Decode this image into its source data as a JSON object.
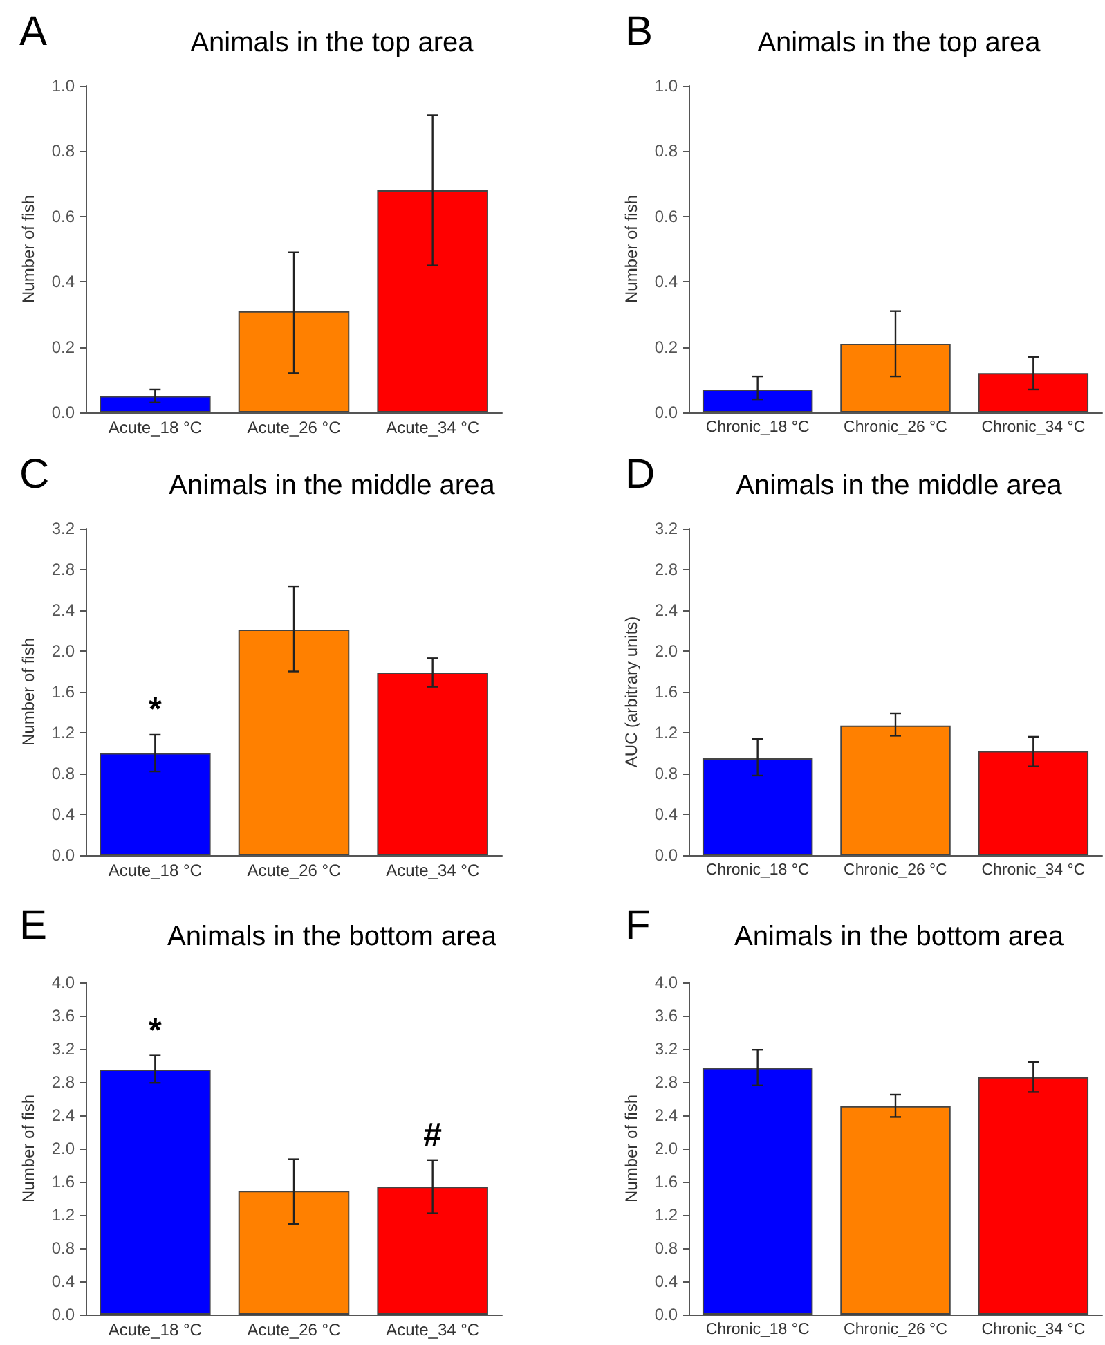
{
  "chart_data": [
    {
      "type": "bar",
      "title": "Animals in the top area",
      "ylabel": "Number of fish",
      "categories": [
        "Acute_18 °C",
        "Acute_26 °C",
        "Acute_34 °C"
      ],
      "values": [
        0.05,
        0.31,
        0.68
      ],
      "colors": [
        "#0000ff",
        "#ff8000",
        "#ff0000"
      ],
      "errors": [
        [
          0.03,
          0.07
        ],
        [
          0.12,
          0.49
        ],
        [
          0.45,
          0.91
        ]
      ],
      "ylim": [
        0,
        1.0
      ],
      "yticks": [
        {
          "value": 0,
          "label": "0.0"
        },
        0.2,
        0.4,
        0.6,
        0.8,
        {
          "value": 1,
          "label": "1.0"
        }
      ],
      "grid": false,
      "annotations": [
        "A"
      ]
    },
    {
      "type": "bar",
      "title": "Animals in the top area",
      "ylabel": "Number of fish",
      "categories": [
        "Chronic_18 °C",
        "Chronic_26 °C",
        "Chronic_34 °C"
      ],
      "values": [
        0.07,
        0.21,
        0.12
      ],
      "colors": [
        "#0000ff",
        "#ff8000",
        "#ff0000"
      ],
      "errors": [
        [
          0.04,
          0.11
        ],
        [
          0.11,
          0.31
        ],
        [
          0.07,
          0.17
        ]
      ],
      "ylim": [
        0,
        1.0
      ],
      "yticks": [
        {
          "value": 0,
          "label": "0.0"
        },
        0.2,
        0.4,
        0.6,
        0.8,
        {
          "value": 1,
          "label": "1.0"
        }
      ],
      "grid": false,
      "annotations": [
        "B"
      ]
    },
    {
      "type": "bar",
      "title": "Animals in the middle area",
      "ylabel": "Number of fish",
      "categories": [
        "Acute_18 °C",
        "Acute_26 °C",
        "Acute_34 °C"
      ],
      "values": [
        1.0,
        2.21,
        1.79
      ],
      "colors": [
        "#0000ff",
        "#ff8000",
        "#ff0000"
      ],
      "errors": [
        [
          0.82,
          1.18
        ],
        [
          1.8,
          2.63
        ],
        [
          1.65,
          1.93
        ]
      ],
      "ylim": [
        0,
        3.2
      ],
      "yticks": [
        {
          "value": 0,
          "label": "0.0"
        },
        0.4,
        0.8,
        1.2,
        1.6,
        {
          "value": 2,
          "label": "2.0"
        },
        2.4,
        2.8,
        3.2
      ],
      "grid": false,
      "annotations": [
        "C",
        {
          "text": "*",
          "x": "Acute_18 °C",
          "y": 1.0
        }
      ]
    },
    {
      "type": "bar",
      "title": "Animals in the middle area",
      "ylabel": "AUC (arbitrary units)",
      "categories": [
        "Chronic_18 °C",
        "Chronic_26 °C",
        "Chronic_34 °C"
      ],
      "values": [
        0.95,
        1.27,
        1.02
      ],
      "colors": [
        "#0000ff",
        "#ff8000",
        "#ff0000"
      ],
      "errors": [
        [
          0.78,
          1.14
        ],
        [
          1.17,
          1.39
        ],
        [
          0.87,
          1.16
        ]
      ],
      "ylim": [
        0,
        3.2
      ],
      "yticks": [
        {
          "value": 0,
          "label": "0.0"
        },
        0.4,
        0.8,
        1.2,
        1.6,
        {
          "value": 2,
          "label": "2.0"
        },
        2.4,
        2.8,
        3.2
      ],
      "grid": false,
      "annotations": [
        "D"
      ]
    },
    {
      "type": "bar",
      "title": "Animals in the bottom area",
      "ylabel": "Number of fish",
      "categories": [
        "Acute_18 °C",
        "Acute_26 °C",
        "Acute_34 °C"
      ],
      "values": [
        2.95,
        1.49,
        1.54
      ],
      "colors": [
        "#0000ff",
        "#ff8000",
        "#ff0000"
      ],
      "errors": [
        [
          2.79,
          3.12
        ],
        [
          1.09,
          1.87
        ],
        [
          1.22,
          1.86
        ]
      ],
      "ylim": [
        0,
        4.0
      ],
      "yticks": [
        {
          "value": 0,
          "label": "0.0"
        },
        0.4,
        0.8,
        1.2,
        1.6,
        {
          "value": 2,
          "label": "2.0"
        },
        2.4,
        2.8,
        3.2,
        3.6,
        {
          "value": 4,
          "label": "4.0"
        }
      ],
      "grid": false,
      "annotations": [
        "E",
        {
          "text": "*",
          "x": "Acute_18 °C",
          "y": 2.95
        },
        {
          "text": "#",
          "x": "Acute_34 °C",
          "y": 1.54
        }
      ]
    },
    {
      "type": "bar",
      "title": "Animals in the bottom area",
      "ylabel": "Number of fish",
      "categories": [
        "Chronic_18 °C",
        "Chronic_26 °C",
        "Chronic_34 °C"
      ],
      "values": [
        2.97,
        2.51,
        2.86
      ],
      "colors": [
        "#0000ff",
        "#ff8000",
        "#ff0000"
      ],
      "errors": [
        [
          2.76,
          3.19
        ],
        [
          2.38,
          2.65
        ],
        [
          2.68,
          3.04
        ]
      ],
      "ylim": [
        0,
        4.0
      ],
      "yticks": [
        {
          "value": 0,
          "label": "0.0"
        },
        0.4,
        0.8,
        1.2,
        1.6,
        {
          "value": 2,
          "label": "2.0"
        },
        2.4,
        2.8,
        3.2,
        3.6,
        {
          "value": 4,
          "label": "4.0"
        }
      ],
      "grid": false,
      "annotations": [
        "F"
      ]
    }
  ]
}
